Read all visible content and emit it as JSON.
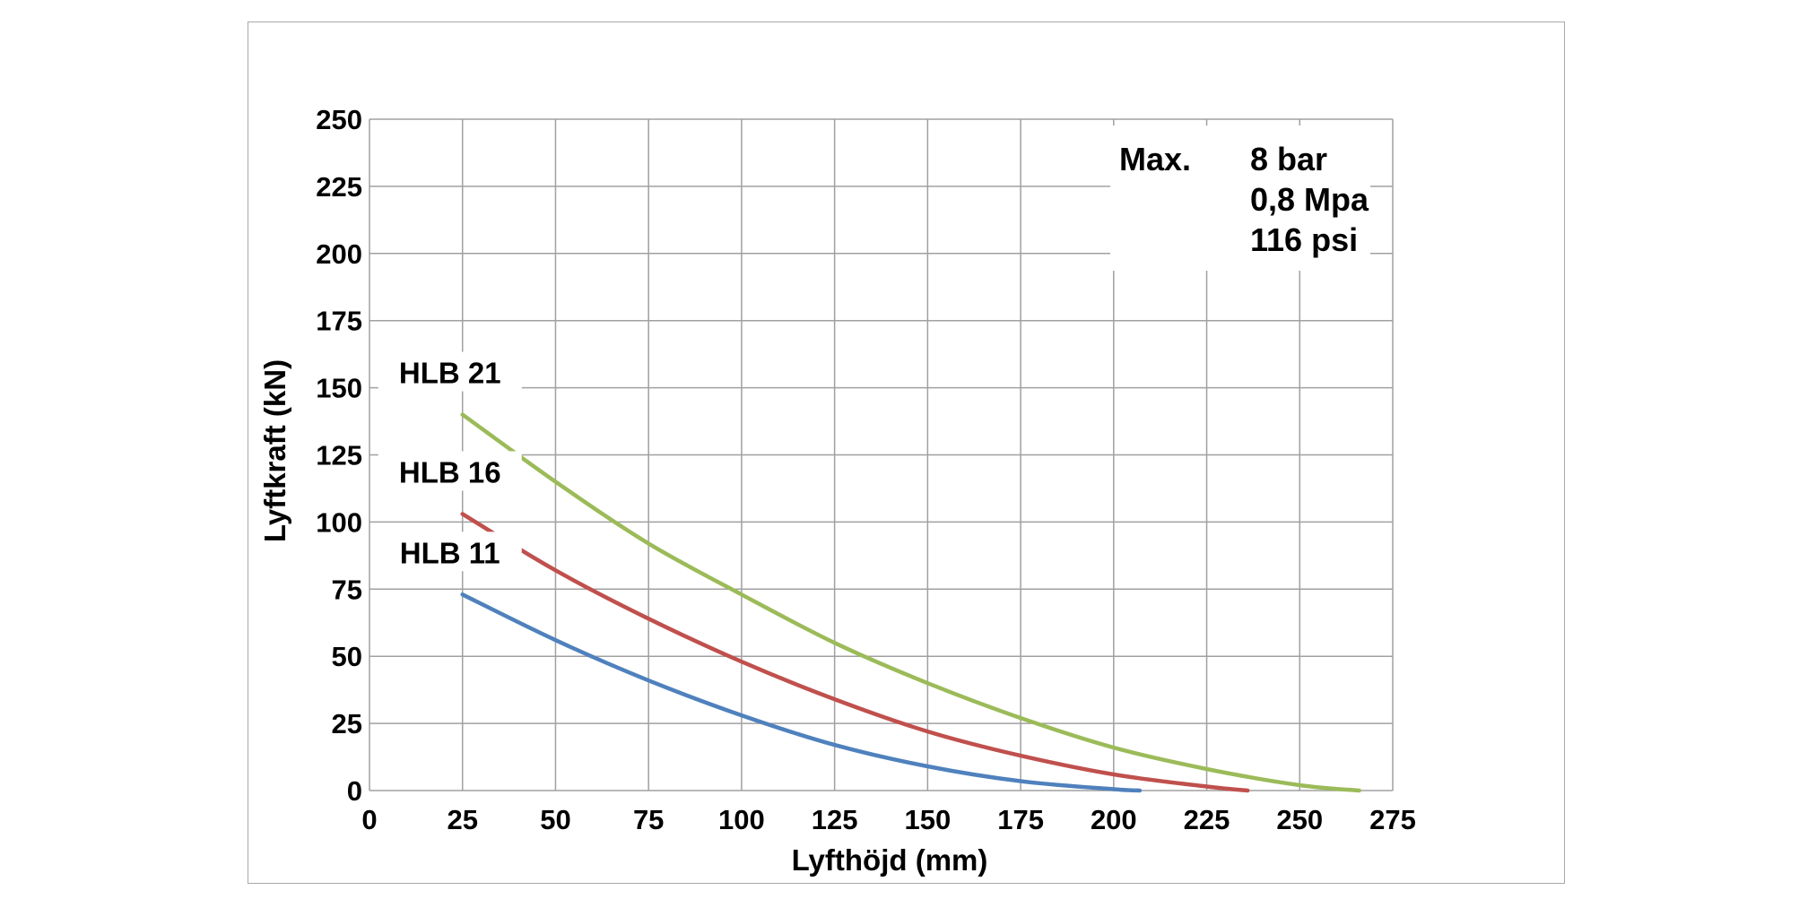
{
  "chart_data": {
    "type": "line",
    "title": "",
    "xlabel": "Lyfthöjd (mm)",
    "ylabel": "Lyftkraft (kN)",
    "xlim": [
      0,
      275
    ],
    "ylim": [
      0,
      250
    ],
    "x_ticks": [
      "0",
      "25",
      "50",
      "75",
      "100",
      "125",
      "150",
      "175",
      "200",
      "225",
      "250",
      "275"
    ],
    "y_ticks": [
      "0",
      "25",
      "50",
      "75",
      "100",
      "125",
      "150",
      "175",
      "200",
      "225",
      "250"
    ],
    "grid": true,
    "series": [
      {
        "name": "HLB 21",
        "color": "#9bbb59",
        "x": [
          25,
          50,
          75,
          100,
          125,
          150,
          175,
          200,
          225,
          250,
          266
        ],
        "y": [
          140,
          115,
          92,
          73,
          55,
          40,
          27,
          16,
          8,
          2,
          0
        ]
      },
      {
        "name": "HLB 16",
        "color": "#c0504d",
        "x": [
          25,
          50,
          75,
          100,
          125,
          150,
          175,
          200,
          225,
          236
        ],
        "y": [
          103,
          82,
          64,
          48,
          34,
          22,
          13,
          6,
          1.5,
          0
        ]
      },
      {
        "name": "HLB 11",
        "color": "#4f81bd",
        "x": [
          25,
          50,
          75,
          100,
          125,
          150,
          175,
          200,
          207
        ],
        "y": [
          73,
          56,
          41,
          28,
          17,
          9,
          3.5,
          0.5,
          0
        ]
      }
    ],
    "annotation": {
      "label": "Max.",
      "lines": [
        "8 bar",
        "0,8 Mpa",
        "116 psi"
      ]
    },
    "grid_color": "#a0a0a0"
  }
}
